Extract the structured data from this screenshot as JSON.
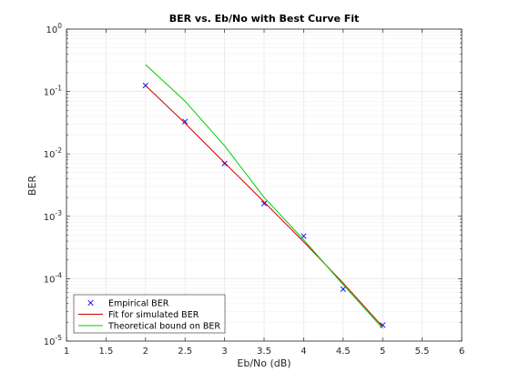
{
  "chart_data": {
    "type": "line",
    "title": "BER vs. Eb/No with Best Curve Fit",
    "xlabel": "Eb/No (dB)",
    "ylabel": "BER",
    "xlim": [
      1,
      6
    ],
    "ylim": [
      1e-05,
      1
    ],
    "yscale": "log",
    "grid": true,
    "legend_position": "bottom-left",
    "x_ticks": [
      "1",
      "1.5",
      "2",
      "2.5",
      "3",
      "3.5",
      "4",
      "4.5",
      "5",
      "5.5",
      "6"
    ],
    "y_ticks": [
      {
        "base": "10",
        "exp": "-5"
      },
      {
        "base": "10",
        "exp": "-4"
      },
      {
        "base": "10",
        "exp": "-3"
      },
      {
        "base": "10",
        "exp": "-2"
      },
      {
        "base": "10",
        "exp": "-1"
      },
      {
        "base": "10",
        "exp": "0"
      }
    ],
    "series": [
      {
        "name": "Empirical BER",
        "style": "marker-x",
        "color": "#0000ff",
        "x": [
          2,
          2.5,
          3,
          3.5,
          4,
          4.5,
          5
        ],
        "y": [
          0.125,
          0.033,
          0.007,
          0.0016,
          0.00048,
          6.8e-05,
          1.8e-05
        ]
      },
      {
        "name": "Fit for simulated BER",
        "style": "line",
        "color": "#cc0000",
        "x": [
          2,
          2.5,
          3,
          3.5,
          4,
          4.5,
          5
        ],
        "y": [
          0.125,
          0.031,
          0.0072,
          0.0017,
          0.00039,
          8.5e-05,
          1.7e-05
        ]
      },
      {
        "name": "Theoretical bound on BER",
        "style": "line",
        "color": "#00cc00",
        "x": [
          2,
          2.5,
          3,
          3.5,
          4,
          4.5,
          5
        ],
        "y": [
          0.27,
          0.07,
          0.0135,
          0.002,
          0.00042,
          8e-05,
          1.6e-05
        ]
      }
    ]
  }
}
